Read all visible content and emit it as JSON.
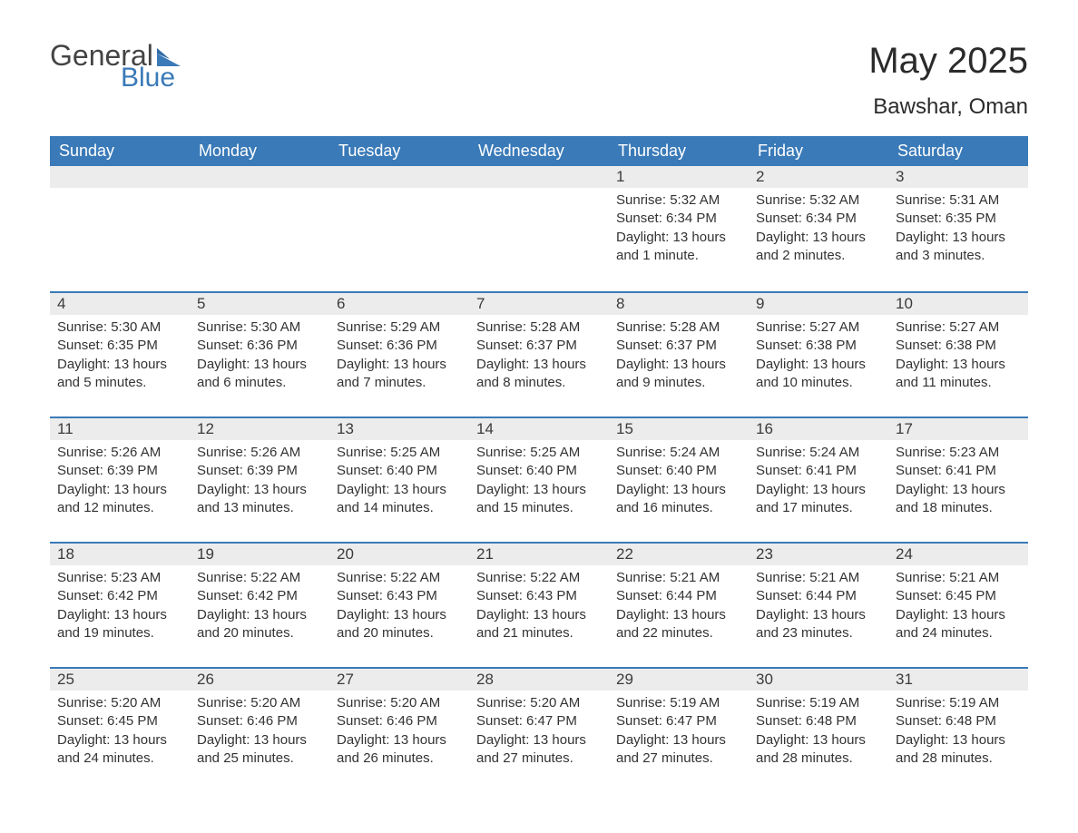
{
  "logo": {
    "general": "General",
    "blue": "Blue"
  },
  "title": "May 2025",
  "location": "Bawshar, Oman",
  "colors": {
    "header_bg": "#3a7ab8",
    "header_text": "#ffffff",
    "daynum_bg": "#ececec",
    "row_border": "#3a7ab8",
    "body_text": "#333333",
    "title_text": "#2b2b2b",
    "logo_gray": "#444444",
    "logo_blue": "#3a7ab8",
    "page_bg": "#ffffff"
  },
  "weekdays": [
    "Sunday",
    "Monday",
    "Tuesday",
    "Wednesday",
    "Thursday",
    "Friday",
    "Saturday"
  ],
  "weeks": [
    [
      null,
      null,
      null,
      null,
      {
        "n": "1",
        "sr": "5:32 AM",
        "ss": "6:34 PM",
        "dl": "13 hours and 1 minute."
      },
      {
        "n": "2",
        "sr": "5:32 AM",
        "ss": "6:34 PM",
        "dl": "13 hours and 2 minutes."
      },
      {
        "n": "3",
        "sr": "5:31 AM",
        "ss": "6:35 PM",
        "dl": "13 hours and 3 minutes."
      }
    ],
    [
      {
        "n": "4",
        "sr": "5:30 AM",
        "ss": "6:35 PM",
        "dl": "13 hours and 5 minutes."
      },
      {
        "n": "5",
        "sr": "5:30 AM",
        "ss": "6:36 PM",
        "dl": "13 hours and 6 minutes."
      },
      {
        "n": "6",
        "sr": "5:29 AM",
        "ss": "6:36 PM",
        "dl": "13 hours and 7 minutes."
      },
      {
        "n": "7",
        "sr": "5:28 AM",
        "ss": "6:37 PM",
        "dl": "13 hours and 8 minutes."
      },
      {
        "n": "8",
        "sr": "5:28 AM",
        "ss": "6:37 PM",
        "dl": "13 hours and 9 minutes."
      },
      {
        "n": "9",
        "sr": "5:27 AM",
        "ss": "6:38 PM",
        "dl": "13 hours and 10 minutes."
      },
      {
        "n": "10",
        "sr": "5:27 AM",
        "ss": "6:38 PM",
        "dl": "13 hours and 11 minutes."
      }
    ],
    [
      {
        "n": "11",
        "sr": "5:26 AM",
        "ss": "6:39 PM",
        "dl": "13 hours and 12 minutes."
      },
      {
        "n": "12",
        "sr": "5:26 AM",
        "ss": "6:39 PM",
        "dl": "13 hours and 13 minutes."
      },
      {
        "n": "13",
        "sr": "5:25 AM",
        "ss": "6:40 PM",
        "dl": "13 hours and 14 minutes."
      },
      {
        "n": "14",
        "sr": "5:25 AM",
        "ss": "6:40 PM",
        "dl": "13 hours and 15 minutes."
      },
      {
        "n": "15",
        "sr": "5:24 AM",
        "ss": "6:40 PM",
        "dl": "13 hours and 16 minutes."
      },
      {
        "n": "16",
        "sr": "5:24 AM",
        "ss": "6:41 PM",
        "dl": "13 hours and 17 minutes."
      },
      {
        "n": "17",
        "sr": "5:23 AM",
        "ss": "6:41 PM",
        "dl": "13 hours and 18 minutes."
      }
    ],
    [
      {
        "n": "18",
        "sr": "5:23 AM",
        "ss": "6:42 PM",
        "dl": "13 hours and 19 minutes."
      },
      {
        "n": "19",
        "sr": "5:22 AM",
        "ss": "6:42 PM",
        "dl": "13 hours and 20 minutes."
      },
      {
        "n": "20",
        "sr": "5:22 AM",
        "ss": "6:43 PM",
        "dl": "13 hours and 20 minutes."
      },
      {
        "n": "21",
        "sr": "5:22 AM",
        "ss": "6:43 PM",
        "dl": "13 hours and 21 minutes."
      },
      {
        "n": "22",
        "sr": "5:21 AM",
        "ss": "6:44 PM",
        "dl": "13 hours and 22 minutes."
      },
      {
        "n": "23",
        "sr": "5:21 AM",
        "ss": "6:44 PM",
        "dl": "13 hours and 23 minutes."
      },
      {
        "n": "24",
        "sr": "5:21 AM",
        "ss": "6:45 PM",
        "dl": "13 hours and 24 minutes."
      }
    ],
    [
      {
        "n": "25",
        "sr": "5:20 AM",
        "ss": "6:45 PM",
        "dl": "13 hours and 24 minutes."
      },
      {
        "n": "26",
        "sr": "5:20 AM",
        "ss": "6:46 PM",
        "dl": "13 hours and 25 minutes."
      },
      {
        "n": "27",
        "sr": "5:20 AM",
        "ss": "6:46 PM",
        "dl": "13 hours and 26 minutes."
      },
      {
        "n": "28",
        "sr": "5:20 AM",
        "ss": "6:47 PM",
        "dl": "13 hours and 27 minutes."
      },
      {
        "n": "29",
        "sr": "5:19 AM",
        "ss": "6:47 PM",
        "dl": "13 hours and 27 minutes."
      },
      {
        "n": "30",
        "sr": "5:19 AM",
        "ss": "6:48 PM",
        "dl": "13 hours and 28 minutes."
      },
      {
        "n": "31",
        "sr": "5:19 AM",
        "ss": "6:48 PM",
        "dl": "13 hours and 28 minutes."
      }
    ]
  ],
  "labels": {
    "sunrise": "Sunrise: ",
    "sunset": "Sunset: ",
    "daylight": "Daylight: "
  }
}
